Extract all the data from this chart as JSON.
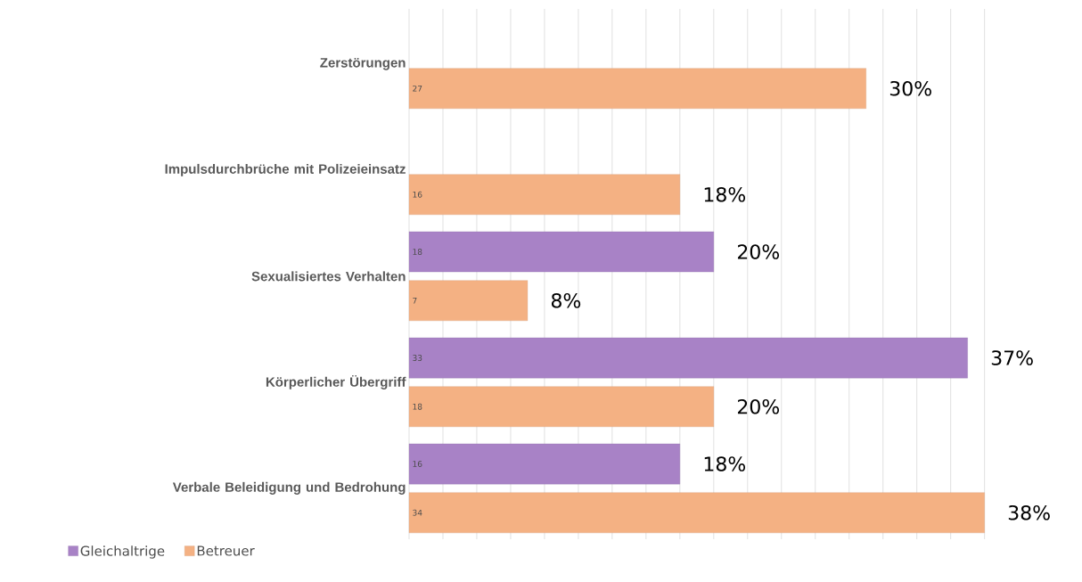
{
  "chart_data": {
    "type": "bar",
    "orientation": "horizontal",
    "categories": [
      "Zerstörungen",
      "Impulsdurchbrüche mit Polizeieinsatz",
      "Sexualisiertes Verhalten",
      "Körperlicher Übergriff",
      "Verbale Beleidigung und Bedrohung"
    ],
    "series": [
      {
        "name": "Gleichaltrige",
        "color": "#a882c6",
        "values": [
          null,
          null,
          18,
          33,
          16
        ]
      },
      {
        "name": "Betreuer",
        "color": "#f4b183",
        "values": [
          27,
          16,
          7,
          18,
          34
        ]
      }
    ],
    "annotations": [
      {
        "text": "20%",
        "x": 18,
        "y": "Sexualisiertes Verhalten"
      },
      {
        "text": "37%",
        "x": 33,
        "y": "Körperlicher Übergriff"
      },
      {
        "text": "18%",
        "x": 16,
        "y": "Verbale Beleidigung und Bedrohung"
      },
      {
        "text": "30%",
        "x": 27,
        "y": "Zerstörungen"
      },
      {
        "text": "18%",
        "x": 16,
        "y": "Impulsdurchbrüche mit Polizeieinsatz"
      },
      {
        "text": "8%",
        "x": 7,
        "y": "Sexualisiertes Verhalten"
      },
      {
        "text": "20%",
        "x": 18,
        "y": "Körperlicher Übergriff"
      },
      {
        "text": "38%",
        "x": 34,
        "y": "Verbale Beleidigung und Bedrohung"
      }
    ],
    "grid": "x",
    "data_labels": true,
    "legend": "bottom left",
    "tick_labels": "y"
  }
}
